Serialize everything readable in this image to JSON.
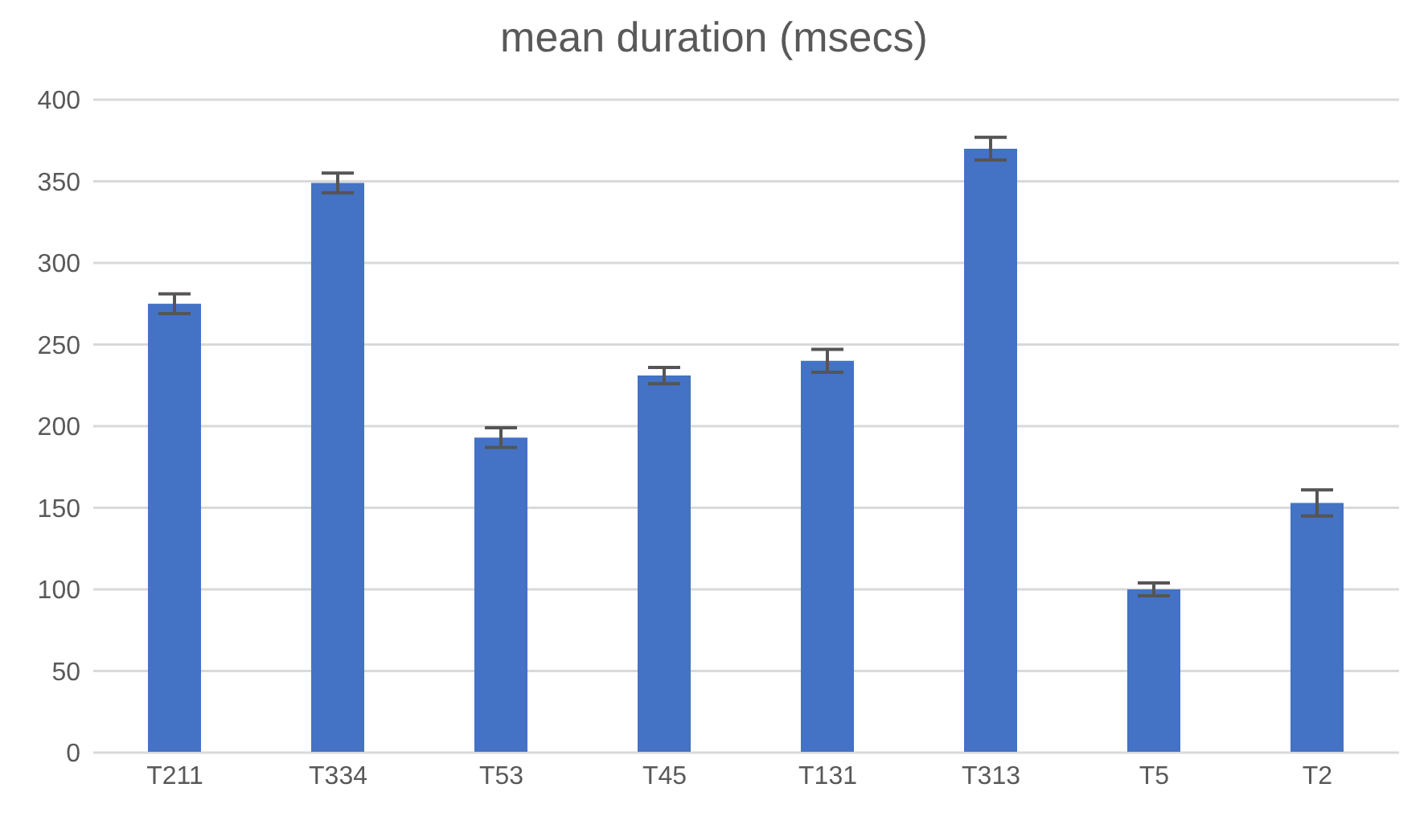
{
  "chart_data": {
    "type": "bar",
    "title": "mean duration (msecs)",
    "categories": [
      "T211",
      "T334",
      "T53",
      "T45",
      "T131",
      "T313",
      "T5",
      "T2"
    ],
    "values": [
      275,
      349,
      193,
      231,
      240,
      370,
      100,
      153
    ],
    "errors": [
      6,
      6,
      6,
      5,
      7,
      7,
      4,
      8
    ],
    "color": "#4472c4",
    "ylim": [
      0,
      400
    ],
    "yticks": [
      0,
      50,
      100,
      150,
      200,
      250,
      300,
      350,
      400
    ],
    "grid": "y",
    "legend": false
  }
}
